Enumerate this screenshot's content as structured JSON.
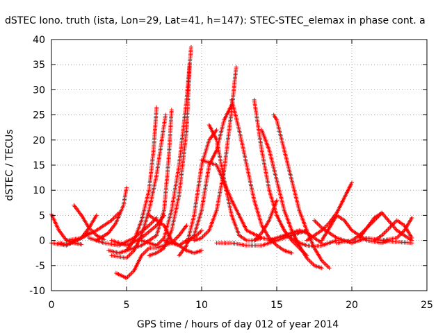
{
  "chart_data": {
    "type": "scatter",
    "title": "dSTEC Iono. truth (ista, Lon=29, Lat=41, h=147): STEC-STEC_elemax in phase cont. a",
    "xlabel": "GPS time / hours of day 012 of year 2014",
    "ylabel": "dSTEC  / TECUs",
    "xlim": [
      0,
      25
    ],
    "ylim": [
      -10,
      40
    ],
    "x_ticks": [
      "0",
      "5",
      "10",
      "15",
      "20",
      "25"
    ],
    "y_ticks": [
      "-10",
      "-5",
      "0",
      "5",
      "10",
      "15",
      "20",
      "25",
      "30",
      "35",
      "40"
    ],
    "grid": true,
    "marker": "+",
    "color": "#ff0000",
    "series": [
      {
        "x": [
          0.0,
          0.5,
          1.0,
          1.5,
          2.0
        ],
        "y": [
          5.2,
          2.0,
          0.0,
          -0.5,
          -0.8
        ]
      },
      {
        "x": [
          0.0,
          1.0,
          2.0,
          2.5,
          3.0
        ],
        "y": [
          -0.5,
          -1.0,
          0.5,
          2.5,
          5.0
        ]
      },
      {
        "x": [
          0.5,
          1.0,
          1.5,
          2.0,
          2.5
        ],
        "y": [
          -0.5,
          -0.8,
          -0.2,
          0.5,
          1.5
        ]
      },
      {
        "x": [
          1.0,
          2.0,
          3.0,
          4.0,
          4.5
        ],
        "y": [
          0.0,
          0.5,
          2.0,
          4.0,
          5.5
        ]
      },
      {
        "x": [
          1.5,
          2.0,
          2.5,
          3.0,
          3.5
        ],
        "y": [
          7.0,
          5.0,
          2.5,
          1.0,
          0.2
        ]
      },
      {
        "x": [
          2.5,
          3.5,
          4.5,
          5.5,
          6.5,
          7.0
        ],
        "y": [
          0.5,
          -0.5,
          -1.0,
          0.5,
          3.0,
          4.5
        ]
      },
      {
        "x": [
          3.0,
          3.8,
          4.3,
          4.8,
          5.0
        ],
        "y": [
          0.0,
          1.5,
          3.5,
          7.0,
          10.5
        ]
      },
      {
        "x": [
          4.0,
          5.0,
          6.0,
          7.0,
          7.5
        ],
        "y": [
          0.0,
          -1.0,
          0.5,
          3.0,
          5.0
        ]
      },
      {
        "x": [
          3.8,
          4.5,
          5.0,
          5.5,
          6.0,
          6.5,
          6.8,
          7.0
        ],
        "y": [
          -2.0,
          -2.5,
          -2.0,
          0.0,
          4.0,
          10.0,
          18.0,
          26.5
        ]
      },
      {
        "x": [
          4.0,
          5.0,
          5.5,
          6.0,
          6.5,
          7.0,
          7.3,
          7.6
        ],
        "y": [
          -3.0,
          -3.5,
          -2.0,
          1.0,
          6.0,
          13.0,
          19.0,
          25.0
        ]
      },
      {
        "x": [
          5.0,
          6.0,
          7.0,
          7.5,
          7.8,
          8.0
        ],
        "y": [
          -2.0,
          -1.0,
          1.0,
          6.0,
          16.0,
          26.0
        ]
      },
      {
        "x": [
          4.3,
          4.8,
          5.0,
          5.5,
          6.0,
          6.5,
          7.0,
          8.0,
          8.5,
          9.0
        ],
        "y": [
          -6.5,
          -7.2,
          -7.5,
          -6.0,
          -3.0,
          -1.5,
          -1.5,
          -0.5,
          1.0,
          3.0
        ]
      },
      {
        "x": [
          6.0,
          6.5,
          7.0,
          7.5,
          8.0,
          8.5,
          9.0,
          9.3
        ],
        "y": [
          0.0,
          -0.5,
          -1.0,
          0.5,
          6.0,
          15.0,
          28.0,
          38.5
        ]
      },
      {
        "x": [
          6.5,
          7.0,
          7.5,
          8.0,
          8.5,
          9.0,
          9.2
        ],
        "y": [
          -3.0,
          -2.5,
          -1.5,
          2.0,
          9.0,
          22.0,
          35.0
        ]
      },
      {
        "x": [
          7.5,
          8.0,
          8.5,
          9.0,
          9.5,
          10.0
        ],
        "y": [
          0.0,
          -0.5,
          -1.0,
          0.0,
          0.5,
          2.0
        ]
      },
      {
        "x": [
          6.5,
          7.5,
          8.0,
          8.5,
          9.0,
          9.5,
          10.0
        ],
        "y": [
          5.0,
          3.0,
          0.0,
          -1.0,
          -2.0,
          -2.5,
          -2.0
        ]
      },
      {
        "x": [
          8.5,
          9.0,
          9.5,
          10.0,
          10.5,
          11.0
        ],
        "y": [
          -3.0,
          -1.0,
          5.0,
          15.0,
          20.0,
          22.0
        ]
      },
      {
        "x": [
          9.0,
          9.5,
          10.0,
          10.5,
          11.0,
          11.5,
          12.0
        ],
        "y": [
          -0.5,
          1.0,
          6.0,
          15.0,
          18.0,
          24.0,
          27.0
        ]
      },
      {
        "x": [
          9.5,
          10.0,
          10.5,
          11.0,
          11.5,
          12.0,
          12.3
        ],
        "y": [
          0.0,
          0.5,
          2.0,
          6.0,
          14.0,
          26.0,
          34.5
        ]
      },
      {
        "x": [
          10.0,
          11.0,
          12.0,
          13.0,
          14.0,
          15.0
        ],
        "y": [
          16.0,
          15.0,
          8.0,
          2.0,
          0.5,
          0.0
        ]
      },
      {
        "x": [
          10.5,
          11.0,
          11.5,
          12.0,
          12.5,
          13.0,
          13.5,
          14.0
        ],
        "y": [
          23.0,
          20.0,
          12.0,
          5.0,
          1.0,
          0.0,
          0.0,
          0.5
        ]
      },
      {
        "x": [
          11.0,
          12.0,
          13.0,
          14.0,
          15.0,
          16.0,
          17.0
        ],
        "y": [
          -0.5,
          -0.5,
          -1.0,
          -1.0,
          0.0,
          1.0,
          2.0
        ]
      },
      {
        "x": [
          12.0,
          12.5,
          13.0,
          13.5,
          14.0,
          14.5,
          15.0,
          15.5,
          16.0
        ],
        "y": [
          28.0,
          22.0,
          15.0,
          8.0,
          3.0,
          0.5,
          -1.0,
          -2.0,
          -2.5
        ]
      },
      {
        "x": [
          13.5,
          14.0,
          14.5,
          15.0,
          15.5,
          16.0,
          16.5,
          17.0
        ],
        "y": [
          28.0,
          18.0,
          10.0,
          5.0,
          2.0,
          0.0,
          -1.5,
          -3.0
        ]
      },
      {
        "x": [
          13.5,
          14.0,
          14.5,
          15.0
        ],
        "y": [
          0.0,
          1.5,
          4.0,
          8.0
        ]
      },
      {
        "x": [
          14.0,
          14.5,
          15.0,
          15.5,
          16.0,
          16.5,
          17.0,
          17.5,
          18.0
        ],
        "y": [
          22.0,
          18.0,
          12.0,
          6.0,
          2.0,
          -1.0,
          -3.5,
          -5.0,
          -5.5
        ]
      },
      {
        "x": [
          14.8,
          15.0,
          15.5,
          16.0,
          16.5,
          17.0,
          17.5,
          18.0,
          18.5
        ],
        "y": [
          25.0,
          24.0,
          18.0,
          12.0,
          6.0,
          2.0,
          -1.5,
          -4.0,
          -5.5
        ]
      },
      {
        "x": [
          14.5,
          15.0,
          15.5,
          16.0,
          16.5,
          17.0,
          17.5,
          18.0
        ],
        "y": [
          0.0,
          0.5,
          1.0,
          1.5,
          2.0,
          1.5,
          0.5,
          -0.5
        ]
      },
      {
        "x": [
          16.0,
          16.5,
          17.0,
          17.5,
          18.0,
          18.5,
          19.0
        ],
        "y": [
          0.5,
          -0.5,
          -1.0,
          -1.2,
          -1.0,
          -0.5,
          0.0
        ]
      },
      {
        "x": [
          17.0,
          17.5,
          18.0,
          18.5,
          19.0,
          19.5,
          20.0
        ],
        "y": [
          0.0,
          1.0,
          2.0,
          3.5,
          5.5,
          8.5,
          11.5
        ]
      },
      {
        "x": [
          17.5,
          18.0,
          18.5,
          19.0,
          19.5,
          20.0
        ],
        "y": [
          4.0,
          2.5,
          1.5,
          0.5,
          0.0,
          -0.5
        ]
      },
      {
        "x": [
          18.0,
          19.0,
          19.5,
          20.0,
          21.0,
          22.0,
          22.5
        ],
        "y": [
          0.0,
          5.0,
          4.0,
          2.0,
          0.0,
          -0.5,
          0.0
        ]
      },
      {
        "x": [
          19.0,
          20.0,
          20.5,
          21.0,
          21.5,
          22.0
        ],
        "y": [
          -0.5,
          0.0,
          1.0,
          2.5,
          4.5,
          5.5
        ]
      },
      {
        "x": [
          20.0,
          20.5,
          21.0,
          22.0,
          23.0,
          24.0
        ],
        "y": [
          -0.5,
          0.0,
          0.5,
          0.0,
          -0.3,
          -0.5
        ]
      },
      {
        "x": [
          20.5,
          21.0,
          22.0,
          23.0,
          24.0
        ],
        "y": [
          0.5,
          2.5,
          5.5,
          2.0,
          0.0
        ]
      },
      {
        "x": [
          21.5,
          22.0,
          22.5,
          23.0,
          23.5,
          24.0
        ],
        "y": [
          0.0,
          1.0,
          2.5,
          4.0,
          3.0,
          0.5
        ]
      },
      {
        "x": [
          22.0,
          23.0,
          23.5,
          24.0
        ],
        "y": [
          0.0,
          0.5,
          2.0,
          4.5
        ]
      }
    ]
  }
}
